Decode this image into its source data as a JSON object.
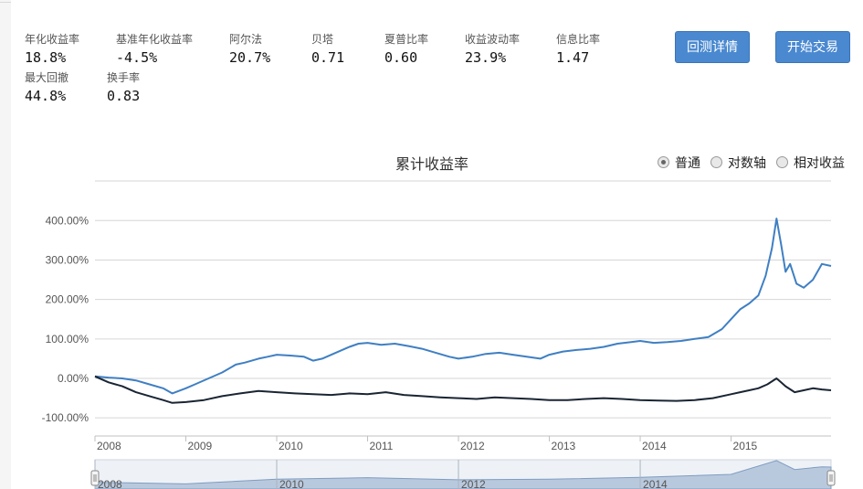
{
  "metrics": [
    {
      "label": "年化收益率",
      "value": "18.8%"
    },
    {
      "label": "基准年化收益率",
      "value": "-4.5%"
    },
    {
      "label": "阿尔法",
      "value": "20.7%"
    },
    {
      "label": "贝塔",
      "value": "0.71"
    },
    {
      "label": "夏普比率",
      "value": "0.60"
    },
    {
      "label": "收益波动率",
      "value": "23.9%"
    },
    {
      "label": "信息比率",
      "value": "1.47"
    },
    {
      "label": "最大回撤",
      "value": "44.8%"
    },
    {
      "label": "换手率",
      "value": "0.83"
    }
  ],
  "buttons": {
    "backtest_details": "回测详情",
    "start_trading": "开始交易"
  },
  "icons": {
    "collapse": "chevron-up-icon"
  },
  "colors": {
    "strategy": "#3f7fc3",
    "benchmark": "#1a2533",
    "button": "#4a89d0",
    "navigator_fill": "#b9c9dd"
  },
  "chart_data": {
    "type": "line",
    "title": "累计收益率",
    "scale_options": [
      {
        "label": "普通",
        "selected": true
      },
      {
        "label": "对数轴",
        "selected": false
      },
      {
        "label": "相对收益",
        "selected": false
      }
    ],
    "y_tick_labels": [
      "400.00%",
      "300.00%",
      "200.00%",
      "100.00%",
      "0.00%",
      "-100.00%"
    ],
    "y_ticks": [
      400,
      300,
      200,
      100,
      0,
      -100
    ],
    "x_tick_labels": [
      "2008",
      "2009",
      "2010",
      "2011",
      "2012",
      "2013",
      "2014",
      "2015"
    ],
    "navigator_labels": [
      "2008",
      "2010",
      "2012",
      "2014"
    ],
    "ylim": [
      -120,
      420
    ],
    "xlim": [
      2008.0,
      2016.1
    ],
    "grid": true,
    "legend": "none",
    "series": [
      {
        "x": [
          2008.0,
          2008.15,
          2008.3,
          2008.45,
          2008.6,
          2008.75,
          2008.85,
          2009.0,
          2009.1,
          2009.25,
          2009.4,
          2009.55,
          2009.65,
          2009.8,
          2009.9,
          2010.0,
          2010.15,
          2010.3,
          2010.4,
          2010.5,
          2010.65,
          2010.8,
          2010.9,
          2011.0,
          2011.15,
          2011.3,
          2011.45,
          2011.6,
          2011.75,
          2011.9,
          2012.0,
          2012.15,
          2012.3,
          2012.45,
          2012.6,
          2012.75,
          2012.9,
          2013.0,
          2013.15,
          2013.3,
          2013.45,
          2013.6,
          2013.75,
          2013.9,
          2014.0,
          2014.15,
          2014.3,
          2014.45,
          2014.6,
          2014.75,
          2014.9,
          2015.0,
          2015.1,
          2015.2,
          2015.3,
          2015.38,
          2015.45,
          2015.5,
          2015.55,
          2015.6,
          2015.65,
          2015.72,
          2015.8,
          2015.9,
          2016.0,
          2016.1
        ],
        "y": [
          5,
          2,
          0,
          -5,
          -15,
          -25,
          -38,
          -25,
          -15,
          0,
          15,
          35,
          40,
          50,
          55,
          60,
          58,
          55,
          45,
          50,
          65,
          80,
          88,
          90,
          85,
          88,
          82,
          75,
          65,
          55,
          50,
          55,
          62,
          65,
          60,
          55,
          50,
          60,
          68,
          72,
          75,
          80,
          88,
          92,
          95,
          90,
          92,
          95,
          100,
          105,
          125,
          150,
          175,
          190,
          210,
          260,
          330,
          405,
          340,
          270,
          290,
          240,
          230,
          250,
          290,
          285
        ]
      },
      {
        "x": [
          2008.0,
          2008.15,
          2008.3,
          2008.45,
          2008.6,
          2008.75,
          2008.85,
          2009.0,
          2009.2,
          2009.4,
          2009.6,
          2009.8,
          2010.0,
          2010.2,
          2010.4,
          2010.6,
          2010.8,
          2011.0,
          2011.2,
          2011.4,
          2011.6,
          2011.8,
          2012.0,
          2012.2,
          2012.4,
          2012.6,
          2012.8,
          2013.0,
          2013.2,
          2013.4,
          2013.6,
          2013.8,
          2014.0,
          2014.2,
          2014.4,
          2014.6,
          2014.8,
          2015.0,
          2015.1,
          2015.2,
          2015.3,
          2015.4,
          2015.5,
          2015.55,
          2015.6,
          2015.7,
          2015.8,
          2015.9,
          2016.0,
          2016.1
        ],
        "y": [
          5,
          -10,
          -20,
          -35,
          -45,
          -55,
          -62,
          -60,
          -55,
          -45,
          -38,
          -32,
          -35,
          -38,
          -40,
          -42,
          -38,
          -40,
          -35,
          -42,
          -45,
          -48,
          -50,
          -52,
          -48,
          -50,
          -52,
          -55,
          -55,
          -52,
          -50,
          -52,
          -55,
          -56,
          -57,
          -55,
          -50,
          -40,
          -35,
          -30,
          -25,
          -15,
          0,
          -10,
          -20,
          -35,
          -30,
          -25,
          -28,
          -30
        ]
      }
    ],
    "navigator": {
      "x": [
        2008.0,
        2009.0,
        2010.0,
        2011.0,
        2012.0,
        2013.0,
        2014.0,
        2015.0,
        2015.5,
        2015.7,
        2016.0,
        2016.1
      ],
      "y": [
        5,
        -25,
        60,
        90,
        50,
        60,
        95,
        150,
        405,
        240,
        290,
        285
      ]
    }
  }
}
